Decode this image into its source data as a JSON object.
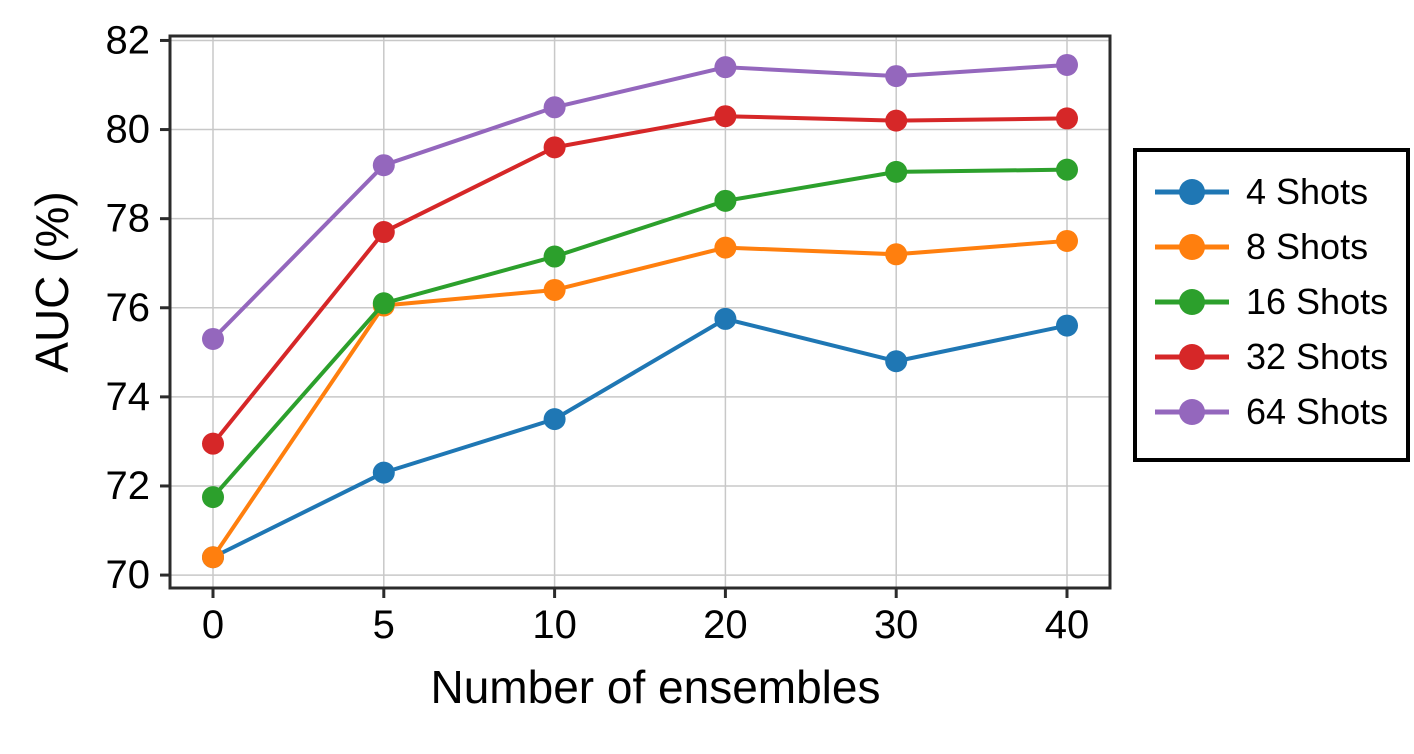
{
  "chart_data": {
    "type": "line",
    "title": "",
    "xlabel": "Number of ensembles",
    "ylabel": "AUC (%)",
    "categories": [
      0,
      5,
      10,
      20,
      30,
      40
    ],
    "xtick_labels": [
      "0",
      "5",
      "10",
      "20",
      "30",
      "40"
    ],
    "yticks": [
      70,
      72,
      74,
      76,
      78,
      80,
      82
    ],
    "ytick_labels": [
      "70",
      "72",
      "74",
      "76",
      "78",
      "80",
      "82"
    ],
    "ylim": [
      69.71,
      82.1
    ],
    "grid": true,
    "legend_position": "outside-right",
    "series": [
      {
        "name": "4 Shots",
        "color": "#1f77b4",
        "values": [
          70.4,
          72.3,
          73.5,
          75.75,
          74.8,
          75.6
        ]
      },
      {
        "name": "8 Shots",
        "color": "#ff7f0e",
        "values": [
          70.4,
          76.05,
          76.4,
          77.35,
          77.2,
          77.5
        ]
      },
      {
        "name": "16 Shots",
        "color": "#2ca02c",
        "values": [
          71.75,
          76.1,
          77.15,
          78.4,
          79.05,
          79.1
        ]
      },
      {
        "name": "32 Shots",
        "color": "#d62728",
        "values": [
          72.95,
          77.7,
          79.6,
          80.3,
          80.2,
          80.25
        ]
      },
      {
        "name": "64 Shots",
        "color": "#9467bd",
        "values": [
          75.3,
          79.2,
          80.5,
          81.4,
          81.2,
          81.45
        ]
      }
    ]
  },
  "style_colors": {
    "grid": "#c8c8c8",
    "spine": "#2b2b2b",
    "tick": "#2b2b2b",
    "text": "#000000",
    "legend_border": "#000000",
    "background": "#ffffff"
  }
}
